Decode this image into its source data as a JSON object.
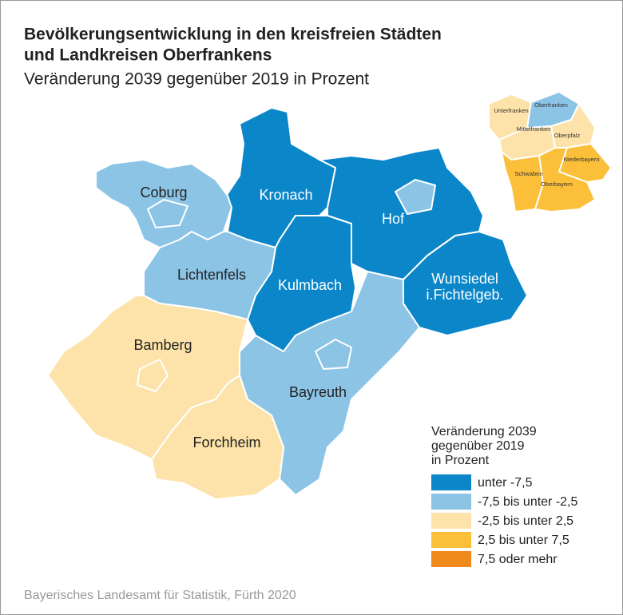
{
  "title": [
    "Bevölkerungsentwicklung in den kreisfreien Städten",
    "und Landkreisen Oberfrankens"
  ],
  "subtitle": "Veränderung 2039 gegenüber 2019 in Prozent",
  "regions": [
    {
      "label": [
        "Kronach"
      ],
      "class": 0
    },
    {
      "label": [
        "Hof"
      ],
      "class": 0
    },
    {
      "label": [
        "Wunsiedel",
        "i.Fichtelgeb."
      ],
      "class": 0
    },
    {
      "label": [
        "Kulmbach"
      ],
      "class": 0
    },
    {
      "label": [
        "Bayreuth"
      ],
      "class": 1
    },
    {
      "label": [
        "Coburg"
      ],
      "class": 1
    },
    {
      "label": [
        "Lichtenfels"
      ],
      "class": 1
    },
    {
      "label": [
        "Bamberg"
      ],
      "class": 2
    },
    {
      "label": [
        "Forchheim"
      ],
      "class": 2
    }
  ],
  "enclaves": [
    {
      "class": 1
    },
    {
      "class": 1
    },
    {
      "class": 1
    },
    {
      "class": 2
    }
  ],
  "inset": [
    {
      "label": "Unterfranken",
      "class": 2
    },
    {
      "label": "Oberfranken",
      "class": 1
    },
    {
      "label": "Mittelfranken",
      "class": 2
    },
    {
      "label": "Oberpfalz",
      "class": 2
    },
    {
      "label": "Schwaben",
      "class": 3
    },
    {
      "label": "Niederbayern",
      "class": 3
    },
    {
      "label": "Oberbayern",
      "class": 3
    }
  ],
  "legend": {
    "title": [
      "Veränderung 2039",
      "gegenüber 2019",
      "in Prozent"
    ],
    "items": [
      {
        "label": "unter -7,5",
        "color": "#0a86c9"
      },
      {
        "label": "-7,5 bis unter -2,5",
        "color": "#8cc4e6"
      },
      {
        "label": "-2,5 bis unter  2,5",
        "color": "#fde3a9"
      },
      {
        "label": "2,5 bis unter  7,5",
        "color": "#fbbf3a"
      },
      {
        "label": "7,5 oder mehr",
        "color": "#ef8a1c"
      }
    ]
  },
  "source": "Bayerisches Landesamt für Statistik, Fürth 2020"
}
